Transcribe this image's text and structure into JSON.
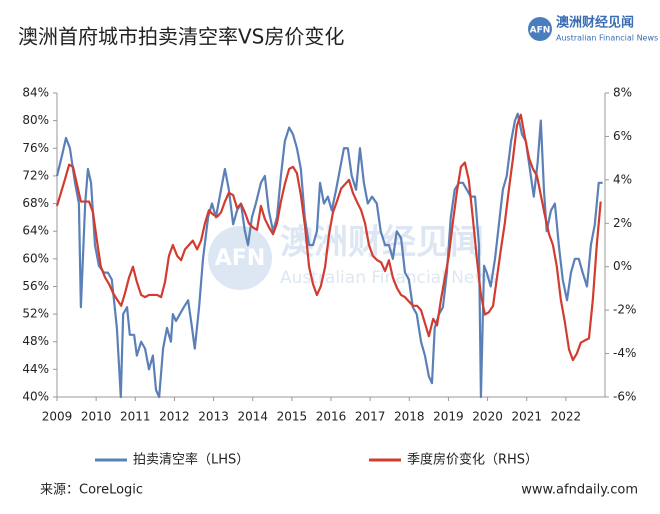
{
  "chart_data": {
    "type": "line",
    "title": "澳洲首府城市拍卖清空率VS房价变化",
    "xlim": [
      2009,
      2023
    ],
    "xticks": [
      2009,
      2010,
      2011,
      2012,
      2013,
      2014,
      2015,
      2016,
      2017,
      2018,
      2019,
      2020,
      2021,
      2022
    ],
    "ylim": [
      40,
      84
    ],
    "yticks": [
      {
        "value": 40,
        "label": "40%"
      },
      {
        "value": 44,
        "label": "44%"
      },
      {
        "value": 48,
        "label": "48%"
      },
      {
        "value": 52,
        "label": "52%"
      },
      {
        "value": 56,
        "label": "56%"
      },
      {
        "value": 60,
        "label": "60%"
      },
      {
        "value": 64,
        "label": "64%"
      },
      {
        "value": 68,
        "label": "68%"
      },
      {
        "value": 72,
        "label": "72%"
      },
      {
        "value": 76,
        "label": "76%"
      },
      {
        "value": 80,
        "label": "80%"
      },
      {
        "value": 84,
        "label": "84%"
      }
    ],
    "y2lim": [
      -6,
      8
    ],
    "y2ticks": [
      {
        "value": -6,
        "label": "-6%"
      },
      {
        "value": -4,
        "label": "-4%"
      },
      {
        "value": -2,
        "label": "-2%"
      },
      {
        "value": 0,
        "label": "0%"
      },
      {
        "value": 2,
        "label": "2%"
      },
      {
        "value": 4,
        "label": "4%"
      },
      {
        "value": 6,
        "label": "6%"
      },
      {
        "value": 8,
        "label": "8%"
      }
    ],
    "grid": false,
    "legend": "bottom",
    "series": [
      {
        "name": "拍卖清空率（LHS）",
        "color": "#5b80b8",
        "axis": "y",
        "x": [
          2009.0,
          2009.13,
          2009.23,
          2009.33,
          2009.46,
          2009.56,
          2009.61,
          2009.72,
          2009.79,
          2009.87,
          2009.97,
          2010.07,
          2010.2,
          2010.3,
          2010.4,
          2010.53,
          2010.63,
          2010.69,
          2010.79,
          2010.86,
          2010.97,
          2011.04,
          2011.15,
          2011.25,
          2011.35,
          2011.45,
          2011.53,
          2011.61,
          2011.71,
          2011.81,
          2011.91,
          2011.96,
          2012.04,
          2012.14,
          2012.24,
          2012.35,
          2012.45,
          2012.52,
          2012.63,
          2012.73,
          2012.86,
          2012.96,
          2013.06,
          2013.19,
          2013.29,
          2013.39,
          2013.5,
          2013.6,
          2013.7,
          2013.8,
          2013.88,
          2013.98,
          2014.08,
          2014.21,
          2014.31,
          2014.41,
          2014.52,
          2014.62,
          2014.72,
          2014.82,
          2014.93,
          2015.03,
          2015.13,
          2015.23,
          2015.33,
          2015.44,
          2015.54,
          2015.64,
          2015.72,
          2015.82,
          2015.92,
          2016.02,
          2016.13,
          2016.23,
          2016.33,
          2016.43,
          2016.53,
          2016.64,
          2016.74,
          2016.84,
          2016.94,
          2017.05,
          2017.17,
          2017.27,
          2017.38,
          2017.48,
          2017.58,
          2017.68,
          2017.79,
          2017.89,
          2017.99,
          2018.09,
          2018.19,
          2018.3,
          2018.4,
          2018.5,
          2018.58,
          2018.65,
          2018.76,
          2018.86,
          2018.96,
          2019.06,
          2019.16,
          2019.27,
          2019.37,
          2019.47,
          2019.57,
          2019.68,
          2019.78,
          2019.83,
          2019.91,
          2019.98,
          2020.08,
          2020.19,
          2020.29,
          2020.39,
          2020.49,
          2020.6,
          2020.7,
          2020.77,
          2020.88,
          2020.98,
          2021.08,
          2021.18,
          2021.28,
          2021.36,
          2021.44,
          2021.51,
          2021.62,
          2021.72,
          2021.82,
          2021.92,
          2022.03,
          2022.13,
          2022.23,
          2022.33,
          2022.43,
          2022.54,
          2022.64,
          2022.74,
          2022.84,
          2022.94
        ],
        "values": [
          72,
          75,
          77.5,
          76,
          71,
          68,
          53,
          68,
          73,
          71,
          62,
          59,
          58,
          58,
          57,
          50,
          40,
          52,
          53,
          49,
          49,
          46,
          48,
          47,
          44,
          46,
          41,
          40,
          47,
          50,
          48,
          52,
          51,
          52,
          53,
          54,
          50,
          47,
          53,
          60,
          66,
          68,
          66,
          70,
          73,
          70,
          65,
          67,
          68,
          64,
          62,
          66,
          68,
          71,
          72,
          67,
          64,
          66,
          72,
          77,
          79,
          78,
          76,
          73,
          66,
          62,
          62,
          64,
          71,
          68,
          69,
          67,
          70,
          73,
          76,
          76,
          72,
          70,
          76,
          71,
          68,
          69,
          68,
          64,
          62,
          62,
          60,
          64,
          63,
          58,
          57,
          53,
          52,
          48,
          46,
          43,
          42,
          50,
          52,
          53,
          58,
          66,
          70,
          71,
          71,
          70,
          69,
          69,
          62,
          40,
          59,
          58,
          56,
          60,
          65,
          70,
          72,
          77,
          80,
          81,
          78,
          77,
          73,
          69,
          74,
          80,
          70,
          64,
          67,
          68,
          62,
          57,
          54,
          58,
          60,
          60,
          58,
          56,
          62,
          65,
          71,
          71
        ]
      },
      {
        "name": "季度房价变化（RHS）",
        "color": "#d23c30",
        "axis": "y2",
        "x": [
          2009.0,
          2009.1,
          2009.2,
          2009.31,
          2009.41,
          2009.51,
          2009.61,
          2009.72,
          2009.82,
          2009.92,
          2010.02,
          2010.12,
          2010.23,
          2010.33,
          2010.43,
          2010.53,
          2010.64,
          2010.74,
          2010.84,
          2010.94,
          2011.04,
          2011.15,
          2011.25,
          2011.35,
          2011.45,
          2011.56,
          2011.66,
          2011.76,
          2011.86,
          2011.96,
          2012.07,
          2012.17,
          2012.27,
          2012.37,
          2012.47,
          2012.58,
          2012.68,
          2012.78,
          2012.88,
          2012.99,
          2013.09,
          2013.19,
          2013.29,
          2013.39,
          2013.5,
          2013.6,
          2013.7,
          2013.8,
          2013.9,
          2014.01,
          2014.11,
          2014.21,
          2014.31,
          2014.42,
          2014.52,
          2014.62,
          2014.72,
          2014.82,
          2014.93,
          2015.03,
          2015.13,
          2015.23,
          2015.34,
          2015.44,
          2015.54,
          2015.64,
          2015.74,
          2015.85,
          2015.95,
          2016.05,
          2016.15,
          2016.26,
          2016.36,
          2016.46,
          2016.56,
          2016.66,
          2016.77,
          2016.87,
          2016.97,
          2017.07,
          2017.18,
          2017.28,
          2017.38,
          2017.48,
          2017.58,
          2017.69,
          2017.79,
          2017.89,
          2017.99,
          2018.1,
          2018.2,
          2018.3,
          2018.4,
          2018.5,
          2018.61,
          2018.71,
          2018.81,
          2018.91,
          2019.01,
          2019.11,
          2019.22,
          2019.32,
          2019.42,
          2019.52,
          2019.62,
          2019.73,
          2019.83,
          2019.93,
          2020.03,
          2020.14,
          2020.24,
          2020.34,
          2020.44,
          2020.54,
          2020.65,
          2020.75,
          2020.85,
          2020.95,
          2021.06,
          2021.16,
          2021.26,
          2021.36,
          2021.46,
          2021.57,
          2021.67,
          2021.77,
          2021.87,
          2021.97,
          2022.08,
          2022.18,
          2022.28,
          2022.38,
          2022.48,
          2022.59,
          2022.69,
          2022.79,
          2022.89
        ],
        "values": [
          2.8,
          3.4,
          4.0,
          4.7,
          4.6,
          3.8,
          3.0,
          3.0,
          3.0,
          2.5,
          1.2,
          0.0,
          -0.5,
          -0.8,
          -1.2,
          -1.5,
          -1.8,
          -1.2,
          -0.5,
          0.0,
          -0.7,
          -1.3,
          -1.4,
          -1.3,
          -1.3,
          -1.3,
          -1.4,
          -0.7,
          0.5,
          1.0,
          0.5,
          0.3,
          0.8,
          1.0,
          1.2,
          0.8,
          1.2,
          2.0,
          2.6,
          2.4,
          2.3,
          2.5,
          3.0,
          3.4,
          3.3,
          2.7,
          2.9,
          2.5,
          2.0,
          1.8,
          1.7,
          2.8,
          2.2,
          1.8,
          1.5,
          2.0,
          3.0,
          3.8,
          4.5,
          4.6,
          4.3,
          3.3,
          1.8,
          0.0,
          -0.8,
          -1.3,
          -0.9,
          0.0,
          1.5,
          2.5,
          3.0,
          3.6,
          3.8,
          4.0,
          3.4,
          3.0,
          2.6,
          2.0,
          1.0,
          0.5,
          0.3,
          0.2,
          -0.2,
          0.3,
          -0.5,
          -1.0,
          -1.3,
          -1.4,
          -1.6,
          -1.8,
          -1.8,
          -2.0,
          -2.6,
          -3.2,
          -2.4,
          -2.7,
          -1.5,
          -0.5,
          0.5,
          2.0,
          3.5,
          4.6,
          4.8,
          4.0,
          2.3,
          0.3,
          -1.3,
          -2.2,
          -2.1,
          -1.8,
          -0.5,
          0.8,
          2.0,
          3.5,
          5.0,
          6.5,
          7.0,
          6.0,
          5.0,
          4.5,
          4.2,
          3.3,
          2.4,
          1.5,
          1.0,
          0.0,
          -1.5,
          -2.5,
          -3.8,
          -4.3,
          -4.0,
          -3.5,
          -3.4,
          -3.3,
          -1.5,
          1.0,
          3.0
        ]
      }
    ]
  },
  "logo": {
    "mark": "AFN",
    "name": "澳洲财经见闻",
    "english": "Australian Financial News"
  },
  "source": "来源：CoreLogic",
  "website": "www.afndaily.com"
}
